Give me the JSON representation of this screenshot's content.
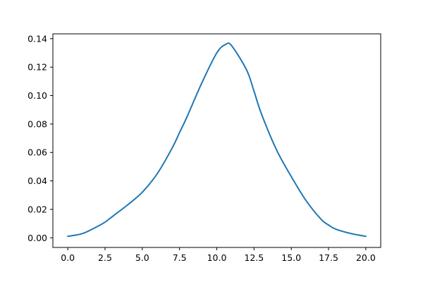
{
  "chart_data": {
    "type": "line",
    "title": "",
    "xlabel": "",
    "ylabel": "",
    "xlim": [
      -1,
      21
    ],
    "ylim": [
      -0.0068,
      0.1434
    ],
    "grid": false,
    "x_ticks": [
      "0.0",
      "2.5",
      "5.0",
      "7.5",
      "10.0",
      "12.5",
      "15.0",
      "17.5",
      "20.0"
    ],
    "y_ticks": [
      "0.00",
      "0.02",
      "0.04",
      "0.06",
      "0.08",
      "0.10",
      "0.12",
      "0.14"
    ],
    "colors": {
      "series": "#1f77b4",
      "axes": "#000000",
      "background": "#ffffff"
    },
    "series": [
      {
        "x": [
          0,
          1,
          2,
          2.5,
          3,
          4,
          5,
          6,
          7,
          7.5,
          8,
          9,
          10,
          10.6,
          11,
          12,
          12.5,
          13,
          14,
          15,
          16,
          17,
          17.5,
          18,
          19,
          20
        ],
        "y": [
          0.001,
          0.003,
          0.008,
          0.011,
          0.015,
          0.023,
          0.032,
          0.045,
          0.063,
          0.074,
          0.085,
          0.109,
          0.13,
          0.136,
          0.135,
          0.118,
          0.103,
          0.087,
          0.062,
          0.043,
          0.026,
          0.013,
          0.009,
          0.006,
          0.003,
          0.001
        ]
      }
    ]
  }
}
